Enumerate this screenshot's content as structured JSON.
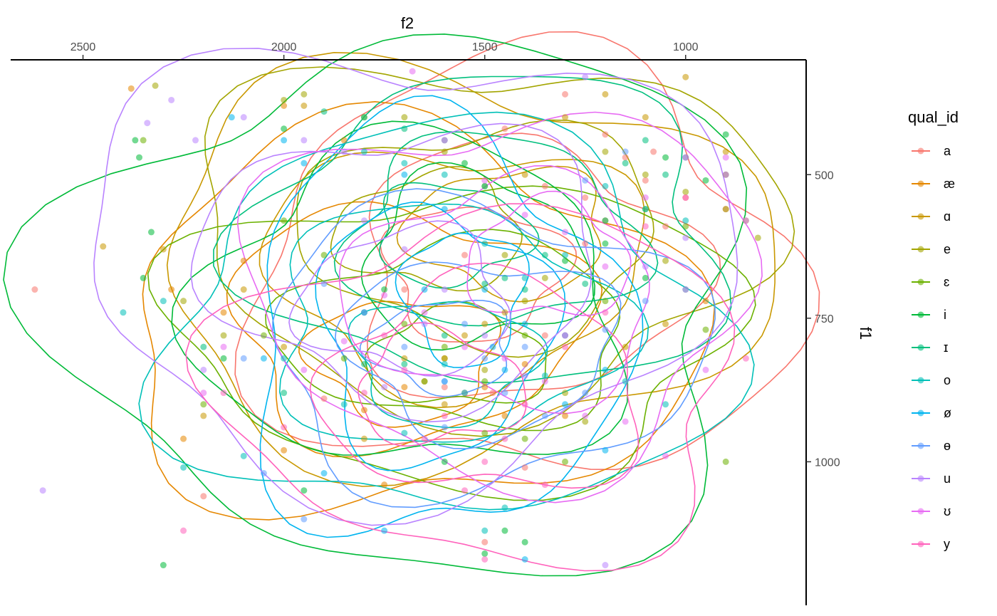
{
  "chart_data": {
    "type": "scatter",
    "title": "",
    "xlabel": "f2",
    "ylabel": "f1",
    "x_axis_position": "top",
    "y_axis_position": "right",
    "x_reversed": true,
    "y_reversed": true,
    "xlim": [
      2680,
      700
    ],
    "ylim": [
      300,
      1250
    ],
    "x_ticks": [
      2500,
      2000,
      1500,
      1000
    ],
    "y_ticks": [
      500,
      750,
      1000
    ],
    "grid": false,
    "legend_title": "qual_id",
    "legend_position": "right",
    "series": [
      {
        "name": "a",
        "color": "#F8766D",
        "points": [
          [
            1300,
            360
          ],
          [
            1200,
            430
          ],
          [
            1100,
            510
          ],
          [
            1000,
            540
          ],
          [
            1450,
            420
          ],
          [
            1150,
            470
          ],
          [
            1250,
            620
          ],
          [
            1050,
            590
          ],
          [
            900,
            560
          ],
          [
            1350,
            520
          ],
          [
            1550,
            640
          ],
          [
            1700,
            700
          ],
          [
            1900,
            890
          ],
          [
            2200,
            1060
          ],
          [
            2620,
            700
          ],
          [
            1400,
            1010
          ],
          [
            1500,
            1140
          ],
          [
            1250,
            540
          ],
          [
            1080,
            460
          ],
          [
            1600,
            870
          ],
          [
            1480,
            880
          ],
          [
            1350,
            780
          ],
          [
            1000,
            700
          ]
        ]
      },
      {
        "name": "æ",
        "color": "#E58700",
        "points": [
          [
            2380,
            350
          ],
          [
            2000,
            380
          ],
          [
            1850,
            440
          ],
          [
            1650,
            860
          ],
          [
            1550,
            880
          ],
          [
            1450,
            920
          ],
          [
            2280,
            700
          ],
          [
            2100,
            650
          ],
          [
            2000,
            980
          ],
          [
            2250,
            960
          ],
          [
            1750,
            1040
          ],
          [
            1300,
            920
          ],
          [
            1200,
            580
          ],
          [
            1600,
            820
          ],
          [
            1400,
            830
          ],
          [
            2150,
            740
          ],
          [
            1800,
            910
          ],
          [
            1700,
            870
          ],
          [
            950,
            720
          ],
          [
            850,
            580
          ],
          [
            1500,
            870
          ]
        ]
      },
      {
        "name": "ɑ",
        "color": "#C99800",
        "points": [
          [
            1000,
            330
          ],
          [
            1200,
            360
          ],
          [
            1300,
            400
          ],
          [
            1100,
            400
          ],
          [
            1400,
            500
          ],
          [
            1500,
            760
          ],
          [
            1600,
            900
          ],
          [
            1700,
            820
          ],
          [
            1800,
            960
          ],
          [
            2000,
            800
          ],
          [
            2100,
            700
          ],
          [
            2300,
            630
          ],
          [
            2450,
            625
          ],
          [
            1550,
            780
          ],
          [
            1450,
            740
          ],
          [
            1300,
            780
          ],
          [
            1150,
            800
          ],
          [
            1050,
            760
          ],
          [
            900,
            460
          ],
          [
            1950,
            380
          ],
          [
            2200,
            920
          ]
        ]
      },
      {
        "name": "e",
        "color": "#A3A500",
        "points": [
          [
            2320,
            345
          ],
          [
            2000,
            370
          ],
          [
            1950,
            360
          ],
          [
            1800,
            400
          ],
          [
            1700,
            400
          ],
          [
            1600,
            460
          ],
          [
            1500,
            520
          ],
          [
            1450,
            640
          ],
          [
            1400,
            720
          ],
          [
            1300,
            880
          ],
          [
            1200,
            460
          ],
          [
            1100,
            500
          ],
          [
            1000,
            530
          ],
          [
            900,
            560
          ],
          [
            2150,
            780
          ],
          [
            2250,
            720
          ],
          [
            1600,
            820
          ],
          [
            1350,
            680
          ],
          [
            1050,
            650
          ],
          [
            820,
            610
          ],
          [
            1500,
            840
          ],
          [
            1250,
            930
          ]
        ]
      },
      {
        "name": "ɛ",
        "color": "#6BB100",
        "points": [
          [
            2350,
            440
          ],
          [
            2200,
            900
          ],
          [
            2000,
            580
          ],
          [
            1900,
            640
          ],
          [
            1800,
            740
          ],
          [
            1700,
            760
          ],
          [
            1600,
            800
          ],
          [
            1500,
            950
          ],
          [
            1400,
            960
          ],
          [
            1300,
            1000
          ],
          [
            1100,
            560
          ],
          [
            1000,
            590
          ],
          [
            900,
            1000
          ],
          [
            1500,
            860
          ],
          [
            1650,
            860
          ],
          [
            2050,
            780
          ],
          [
            1850,
            820
          ],
          [
            1400,
            780
          ],
          [
            1200,
            720
          ],
          [
            950,
            770
          ]
        ]
      },
      {
        "name": "i",
        "color": "#00BA38",
        "points": [
          [
            2370,
            440
          ],
          [
            2360,
            470
          ],
          [
            2330,
            600
          ],
          [
            2350,
            680
          ],
          [
            2300,
            1180
          ],
          [
            2150,
            820
          ],
          [
            1950,
            1050
          ],
          [
            1600,
            1000
          ],
          [
            1500,
            1160
          ],
          [
            1450,
            1120
          ],
          [
            1300,
            650
          ],
          [
            1100,
            680
          ],
          [
            1050,
            470
          ],
          [
            950,
            510
          ],
          [
            900,
            430
          ],
          [
            1750,
            700
          ],
          [
            2000,
            420
          ],
          [
            1550,
            480
          ],
          [
            1200,
            620
          ],
          [
            1400,
            1140
          ]
        ]
      },
      {
        "name": "ɪ",
        "color": "#00BF7D",
        "points": [
          [
            1900,
            390
          ],
          [
            1800,
            400
          ],
          [
            1700,
            420
          ],
          [
            1600,
            440
          ],
          [
            1500,
            520
          ],
          [
            1450,
            680
          ],
          [
            1350,
            640
          ],
          [
            1200,
            580
          ],
          [
            1100,
            440
          ],
          [
            1000,
            470
          ],
          [
            900,
            500
          ],
          [
            1050,
            500
          ],
          [
            1150,
            480
          ],
          [
            1250,
            690
          ],
          [
            1700,
            830
          ],
          [
            1600,
            780
          ],
          [
            1500,
            690
          ],
          [
            1400,
            700
          ],
          [
            1800,
            830
          ],
          [
            2000,
            880
          ],
          [
            2200,
            800
          ]
        ]
      },
      {
        "name": "o",
        "color": "#00C0B8",
        "points": [
          [
            1800,
            460
          ],
          [
            1700,
            480
          ],
          [
            1600,
            500
          ],
          [
            1500,
            620
          ],
          [
            1400,
            680
          ],
          [
            1300,
            640
          ],
          [
            1200,
            520
          ],
          [
            1100,
            560
          ],
          [
            1000,
            580
          ],
          [
            1850,
            900
          ],
          [
            2000,
            820
          ],
          [
            2250,
            1010
          ],
          [
            2400,
            740
          ],
          [
            2300,
            720
          ],
          [
            1500,
            1120
          ],
          [
            1450,
            1080
          ],
          [
            1600,
            830
          ],
          [
            1350,
            850
          ],
          [
            1150,
            860
          ],
          [
            1050,
            900
          ],
          [
            1700,
            950
          ],
          [
            2100,
            990
          ]
        ]
      },
      {
        "name": "ø",
        "color": "#00B4EF",
        "points": [
          [
            2130,
            400
          ],
          [
            2000,
            440
          ],
          [
            1950,
            480
          ],
          [
            1700,
            500
          ],
          [
            1600,
            560
          ],
          [
            1500,
            700
          ],
          [
            1400,
            760
          ],
          [
            1300,
            900
          ],
          [
            1200,
            980
          ],
          [
            1600,
            860
          ],
          [
            1450,
            840
          ],
          [
            1550,
            880
          ],
          [
            1800,
            740
          ],
          [
            2050,
            820
          ],
          [
            1900,
            1020
          ],
          [
            1750,
            1120
          ],
          [
            1400,
            1170
          ],
          [
            1200,
            840
          ],
          [
            1650,
            700
          ],
          [
            1480,
            800
          ]
        ]
      },
      {
        "name": "ɵ",
        "color": "#619CFF",
        "points": [
          [
            1950,
            1100
          ],
          [
            2050,
            1020
          ],
          [
            1600,
            860
          ],
          [
            1500,
            820
          ],
          [
            1400,
            800
          ],
          [
            1300,
            780
          ],
          [
            1200,
            770
          ],
          [
            1100,
            720
          ],
          [
            1000,
            700
          ],
          [
            1150,
            460
          ],
          [
            1250,
            510
          ],
          [
            1800,
            740
          ],
          [
            1700,
            800
          ],
          [
            1550,
            760
          ],
          [
            1450,
            880
          ],
          [
            2100,
            820
          ],
          [
            1900,
            690
          ],
          [
            1350,
            920
          ],
          [
            1600,
            940
          ],
          [
            1250,
            880
          ]
        ]
      },
      {
        "name": "u",
        "color": "#B983FF",
        "points": [
          [
            2340,
            410
          ],
          [
            2280,
            370
          ],
          [
            2220,
            440
          ],
          [
            2100,
            400
          ],
          [
            1950,
            440
          ],
          [
            1850,
            460
          ],
          [
            1800,
            580
          ],
          [
            1700,
            630
          ],
          [
            1600,
            700
          ],
          [
            1500,
            780
          ],
          [
            1400,
            850
          ],
          [
            1300,
            780
          ],
          [
            1200,
            1180
          ],
          [
            1100,
            660
          ],
          [
            1000,
            610
          ],
          [
            850,
            580
          ],
          [
            2600,
            1050
          ],
          [
            2200,
            840
          ],
          [
            1750,
            870
          ],
          [
            1650,
            760
          ],
          [
            1250,
            330
          ]
        ]
      },
      {
        "name": "ʊ",
        "color": "#E76BF3",
        "points": [
          [
            1680,
            320
          ],
          [
            1600,
            440
          ],
          [
            1500,
            510
          ],
          [
            1400,
            570
          ],
          [
            1300,
            600
          ],
          [
            1200,
            660
          ],
          [
            1100,
            540
          ],
          [
            1000,
            470
          ],
          [
            900,
            470
          ],
          [
            2150,
            800
          ],
          [
            2200,
            880
          ],
          [
            1950,
            840
          ],
          [
            1850,
            790
          ],
          [
            1750,
            710
          ],
          [
            1650,
            740
          ],
          [
            1550,
            800
          ],
          [
            1450,
            820
          ],
          [
            1350,
            860
          ],
          [
            1250,
            920
          ],
          [
            1150,
            930
          ],
          [
            1050,
            990
          ],
          [
            950,
            840
          ]
        ]
      },
      {
        "name": "y",
        "color": "#FF62BC",
        "points": [
          [
            2250,
            1120
          ],
          [
            2000,
            940
          ],
          [
            1800,
            880
          ],
          [
            1700,
            840
          ],
          [
            1600,
            920
          ],
          [
            1500,
            1000
          ],
          [
            1400,
            900
          ],
          [
            1300,
            800
          ],
          [
            1200,
            740
          ],
          [
            1100,
            590
          ],
          [
            1000,
            540
          ],
          [
            900,
            500
          ],
          [
            850,
            820
          ],
          [
            1500,
            1170
          ],
          [
            1550,
            1050
          ],
          [
            1650,
            960
          ],
          [
            1450,
            960
          ],
          [
            1350,
            1040
          ],
          [
            1750,
            780
          ],
          [
            2150,
            880
          ]
        ]
      }
    ]
  }
}
